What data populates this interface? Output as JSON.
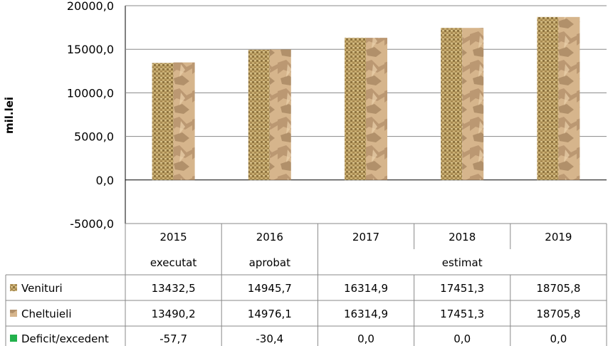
{
  "chart_data": {
    "type": "bar",
    "ylabel": "mil.lei",
    "ylim": [
      -5000,
      20000
    ],
    "yticks": [
      "20000,0",
      "15000,0",
      "10000,0",
      "5000,0",
      "0,0",
      "-5000,0"
    ],
    "yticks_values": [
      20000,
      15000,
      10000,
      5000,
      0,
      -5000
    ],
    "categories": [
      "2015",
      "2016",
      "2017",
      "2018",
      "2019"
    ],
    "status_labels": [
      {
        "label": "executat",
        "span": [
          0,
          0
        ]
      },
      {
        "label": "aprobat",
        "span": [
          1,
          1
        ]
      },
      {
        "label": "estimat",
        "span": [
          2,
          4
        ]
      }
    ],
    "series": [
      {
        "name": "Venituri",
        "values": [
          13432.5,
          14945.7,
          16314.9,
          17451.3,
          18705.8
        ],
        "display": [
          "13432,5",
          "14945,7",
          "16314,9",
          "17451,3",
          "18705,8"
        ],
        "color": "#b89a5c"
      },
      {
        "name": "Cheltuieli",
        "values": [
          13490.2,
          14976.1,
          16314.9,
          17451.3,
          18705.8
        ],
        "display": [
          "13490,2",
          "14976,1",
          "16314,9",
          "17451,3",
          "18705,8"
        ],
        "color": "#c9a57a"
      },
      {
        "name": "Deficit/excedent",
        "values": [
          -57.7,
          -30.4,
          0.0,
          0.0,
          0.0
        ],
        "display": [
          "-57,7",
          "-30,4",
          "0,0",
          "0,0",
          "0,0"
        ],
        "color": "#22b14c"
      }
    ],
    "grid": true,
    "legend": "table-left"
  }
}
